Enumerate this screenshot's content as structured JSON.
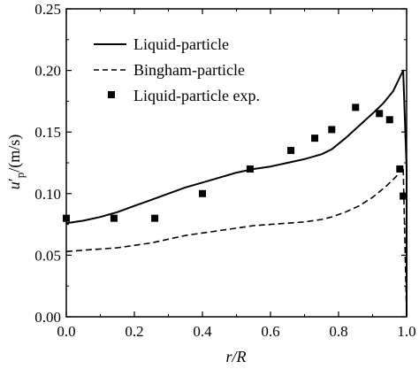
{
  "chart_data": {
    "type": "line",
    "xlabel": "r/R",
    "ylabel": {
      "var": "u",
      "prime": "′",
      "sub": "p",
      "unit": "/(m/s)"
    },
    "xlim": [
      0,
      1
    ],
    "ylim": [
      0,
      0.25
    ],
    "xticks": [
      0.0,
      0.2,
      0.4,
      0.6,
      0.8,
      1.0
    ],
    "yticks": [
      0.0,
      0.05,
      0.1,
      0.15,
      0.2,
      0.25
    ],
    "xtick_labels": [
      "0.0",
      "0.2",
      "0.4",
      "0.6",
      "0.8",
      "1.0"
    ],
    "ytick_labels": [
      "0.00",
      "0.05",
      "0.10",
      "0.15",
      "0.20",
      "0.25"
    ],
    "legend_position": "top-left",
    "series": [
      {
        "name": "Liquid-particle",
        "style": "solid",
        "marker": "none",
        "x": [
          0,
          0.05,
          0.1,
          0.15,
          0.2,
          0.25,
          0.3,
          0.35,
          0.4,
          0.45,
          0.5,
          0.55,
          0.6,
          0.65,
          0.7,
          0.75,
          0.78,
          0.82,
          0.86,
          0.9,
          0.93,
          0.96,
          0.99,
          1.0,
          1.0
        ],
        "y": [
          0.076,
          0.078,
          0.081,
          0.085,
          0.09,
          0.095,
          0.1,
          0.105,
          0.109,
          0.113,
          0.117,
          0.12,
          0.122,
          0.125,
          0.128,
          0.132,
          0.136,
          0.145,
          0.155,
          0.165,
          0.173,
          0.183,
          0.2,
          0.12,
          0.0
        ]
      },
      {
        "name": "Bingham-particle",
        "style": "dashed",
        "marker": "none",
        "x": [
          0,
          0.05,
          0.1,
          0.15,
          0.2,
          0.25,
          0.3,
          0.35,
          0.4,
          0.45,
          0.5,
          0.55,
          0.6,
          0.65,
          0.7,
          0.75,
          0.78,
          0.82,
          0.86,
          0.9,
          0.94,
          0.97,
          0.99,
          1.0
        ],
        "y": [
          0.053,
          0.054,
          0.055,
          0.056,
          0.058,
          0.06,
          0.063,
          0.066,
          0.068,
          0.07,
          0.072,
          0.074,
          0.075,
          0.076,
          0.077,
          0.079,
          0.081,
          0.085,
          0.09,
          0.097,
          0.106,
          0.114,
          0.122,
          0.0
        ]
      },
      {
        "name": "Liquid-particle exp.",
        "style": "none",
        "marker": "square",
        "x": [
          0.0,
          0.14,
          0.26,
          0.4,
          0.54,
          0.66,
          0.73,
          0.78,
          0.85,
          0.92,
          0.95,
          0.98,
          0.99
        ],
        "y": [
          0.08,
          0.08,
          0.08,
          0.1,
          0.12,
          0.135,
          0.145,
          0.152,
          0.17,
          0.165,
          0.16,
          0.12,
          0.098
        ]
      }
    ]
  }
}
